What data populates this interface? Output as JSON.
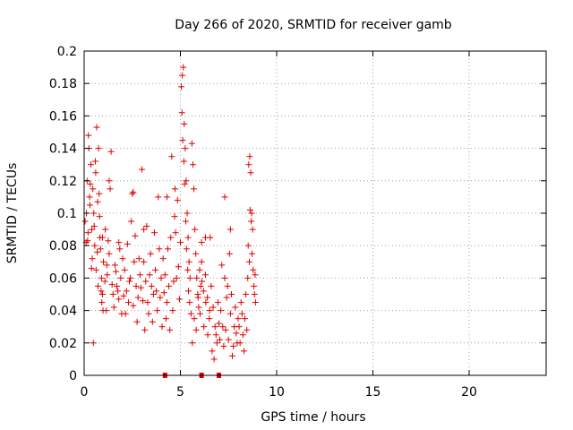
{
  "chart_data": {
    "type": "scatter",
    "title": "Day 266 of 2020, SRMTID for receiver gamb",
    "xlabel": "GPS time / hours",
    "ylabel": "SRMTID / TECUs",
    "xlim": [
      0,
      24
    ],
    "ylim": [
      0,
      0.2
    ],
    "xticks": [
      0,
      5,
      10,
      15,
      20
    ],
    "xtick_labels": [
      "0",
      "5",
      "10",
      "15",
      "20"
    ],
    "yticks": [
      0,
      0.02,
      0.04,
      0.06,
      0.08,
      0.1,
      0.12,
      0.14,
      0.16,
      0.18,
      0.2
    ],
    "ytick_labels": [
      "0",
      "0.02",
      "0.04",
      "0.06",
      "0.08",
      "0.1",
      "0.12",
      "0.14",
      "0.16",
      "0.18",
      "0.2"
    ],
    "grid": true,
    "marker": "plus",
    "color": "#e00000",
    "series": [
      {
        "points": [
          [
            0.05,
            0.095
          ],
          [
            0.1,
            0.082
          ],
          [
            0.15,
            0.12
          ],
          [
            0.2,
            0.088
          ],
          [
            0.25,
            0.14
          ],
          [
            0.3,
            0.105
          ],
          [
            0.35,
            0.13
          ],
          [
            0.4,
            0.09
          ],
          [
            0.45,
            0.115
          ],
          [
            0.5,
            0.1
          ],
          [
            0.55,
            0.08
          ],
          [
            0.6,
            0.125
          ],
          [
            0.65,
            0.153
          ],
          [
            0.7,
            0.107
          ],
          [
            0.75,
            0.14
          ],
          [
            0.8,
            0.098
          ],
          [
            0.85,
            0.078
          ],
          [
            0.9,
            0.06
          ],
          [
            0.95,
            0.05
          ],
          [
            1.0,
            0.07
          ],
          [
            0.12,
            0.1
          ],
          [
            0.22,
            0.148
          ],
          [
            0.32,
            0.118
          ],
          [
            0.42,
            0.072
          ],
          [
            0.52,
            0.092
          ],
          [
            0.62,
            0.065
          ],
          [
            0.72,
            0.055
          ],
          [
            0.82,
            0.085
          ],
          [
            0.92,
            0.045
          ],
          [
            0.48,
            0.02
          ],
          [
            0.18,
            0.083
          ],
          [
            0.28,
            0.11
          ],
          [
            0.38,
            0.066
          ],
          [
            0.58,
            0.132
          ],
          [
            0.68,
            0.076
          ],
          [
            0.78,
            0.112
          ],
          [
            0.88,
            0.052
          ],
          [
            0.98,
            0.04
          ],
          [
            1.08,
            0.058
          ],
          [
            1.18,
            0.068
          ],
          [
            1.1,
            0.09
          ],
          [
            1.2,
            0.062
          ],
          [
            1.3,
            0.075
          ],
          [
            1.4,
            0.138
          ],
          [
            1.5,
            0.05
          ],
          [
            1.6,
            0.068
          ],
          [
            1.7,
            0.055
          ],
          [
            1.8,
            0.047
          ],
          [
            1.9,
            0.06
          ],
          [
            2.0,
            0.072
          ],
          [
            1.15,
            0.04
          ],
          [
            1.25,
            0.083
          ],
          [
            1.35,
            0.115
          ],
          [
            1.45,
            0.056
          ],
          [
            1.55,
            0.042
          ],
          [
            1.65,
            0.064
          ],
          [
            1.75,
            0.052
          ],
          [
            1.85,
            0.078
          ],
          [
            1.95,
            0.038
          ],
          [
            2.05,
            0.049
          ],
          [
            2.1,
            0.065
          ],
          [
            2.2,
            0.052
          ],
          [
            2.3,
            0.045
          ],
          [
            2.4,
            0.06
          ],
          [
            2.5,
            0.112
          ],
          [
            2.6,
            0.07
          ],
          [
            2.7,
            0.055
          ],
          [
            2.8,
            0.048
          ],
          [
            2.9,
            0.062
          ],
          [
            3.0,
            0.127
          ],
          [
            2.15,
            0.038
          ],
          [
            2.25,
            0.081
          ],
          [
            2.35,
            0.058
          ],
          [
            2.45,
            0.095
          ],
          [
            2.55,
            0.043
          ],
          [
            2.65,
            0.086
          ],
          [
            2.75,
            0.033
          ],
          [
            2.85,
            0.072
          ],
          [
            2.95,
            0.054
          ],
          [
            3.05,
            0.046
          ],
          [
            3.1,
            0.07
          ],
          [
            3.2,
            0.058
          ],
          [
            3.3,
            0.045
          ],
          [
            3.4,
            0.062
          ],
          [
            3.5,
            0.055
          ],
          [
            3.6,
            0.05
          ],
          [
            3.7,
            0.065
          ],
          [
            3.8,
            0.04
          ],
          [
            3.9,
            0.078
          ],
          [
            4.0,
            0.06
          ],
          [
            3.15,
            0.028
          ],
          [
            3.25,
            0.092
          ],
          [
            3.35,
            0.038
          ],
          [
            3.45,
            0.075
          ],
          [
            3.55,
            0.033
          ],
          [
            3.65,
            0.088
          ],
          [
            3.75,
            0.052
          ],
          [
            3.85,
            0.11
          ],
          [
            3.95,
            0.048
          ],
          [
            4.05,
            0.03
          ],
          [
            4.1,
            0.072
          ],
          [
            4.2,
            0.062
          ],
          [
            4.3,
            0.045
          ],
          [
            4.4,
            0.055
          ],
          [
            4.5,
            0.085
          ],
          [
            4.6,
            0.04
          ],
          [
            4.7,
            0.098
          ],
          [
            4.8,
            0.06
          ],
          [
            4.9,
            0.067
          ],
          [
            5.0,
            0.082
          ],
          [
            4.15,
            0.051
          ],
          [
            4.25,
            0.035
          ],
          [
            4.35,
            0.078
          ],
          [
            4.45,
            0.028
          ],
          [
            4.55,
            0.135
          ],
          [
            4.65,
            0.058
          ],
          [
            4.75,
            0.088
          ],
          [
            4.85,
            0.108
          ],
          [
            4.95,
            0.047
          ],
          [
            4.72,
            0.115
          ],
          [
            5.05,
            0.178
          ],
          [
            5.1,
            0.185
          ],
          [
            5.15,
            0.19
          ],
          [
            5.2,
            0.155
          ],
          [
            5.25,
            0.14
          ],
          [
            5.3,
            0.12
          ],
          [
            5.35,
            0.1
          ],
          [
            5.4,
            0.085
          ],
          [
            5.45,
            0.07
          ],
          [
            5.5,
            0.06
          ],
          [
            5.08,
            0.162
          ],
          [
            5.12,
            0.145
          ],
          [
            5.18,
            0.132
          ],
          [
            5.22,
            0.118
          ],
          [
            5.28,
            0.095
          ],
          [
            5.32,
            0.078
          ],
          [
            5.38,
            0.065
          ],
          [
            5.42,
            0.052
          ],
          [
            5.48,
            0.045
          ],
          [
            5.55,
            0.038
          ],
          [
            5.6,
            0.143
          ],
          [
            5.65,
            0.13
          ],
          [
            5.7,
            0.115
          ],
          [
            5.75,
            0.09
          ],
          [
            5.8,
            0.075
          ],
          [
            5.85,
            0.06
          ],
          [
            5.9,
            0.05
          ],
          [
            5.95,
            0.042
          ],
          [
            6.0,
            0.065
          ],
          [
            6.05,
            0.055
          ],
          [
            5.62,
            0.02
          ],
          [
            5.72,
            0.035
          ],
          [
            5.82,
            0.028
          ],
          [
            5.92,
            0.048
          ],
          [
            6.02,
            0.038
          ],
          [
            6.12,
            0.058
          ],
          [
            6.22,
            0.03
          ],
          [
            6.32,
            0.045
          ],
          [
            6.42,
            0.025
          ],
          [
            6.52,
            0.04
          ],
          [
            6.1,
            0.07
          ],
          [
            6.2,
            0.052
          ],
          [
            6.3,
            0.062
          ],
          [
            6.4,
            0.048
          ],
          [
            6.5,
            0.035
          ],
          [
            6.6,
            0.055
          ],
          [
            6.7,
            0.042
          ],
          [
            6.8,
            0.03
          ],
          [
            6.9,
            0.02
          ],
          [
            7.0,
            0.032
          ],
          [
            6.55,
            0.085
          ],
          [
            6.65,
            0.015
          ],
          [
            6.75,
            0.01
          ],
          [
            6.85,
            0.025
          ],
          [
            6.95,
            0.045
          ],
          [
            7.05,
            0.022
          ],
          [
            7.15,
            0.068
          ],
          [
            7.25,
            0.018
          ],
          [
            7.35,
            0.028
          ],
          [
            7.45,
            0.055
          ],
          [
            7.1,
            0.04
          ],
          [
            7.2,
            0.03
          ],
          [
            7.3,
            0.06
          ],
          [
            7.4,
            0.048
          ],
          [
            7.5,
            0.022
          ],
          [
            7.6,
            0.038
          ],
          [
            7.7,
            0.012
          ],
          [
            7.8,
            0.03
          ],
          [
            7.9,
            0.026
          ],
          [
            8.0,
            0.035
          ],
          [
            7.55,
            0.075
          ],
          [
            7.65,
            0.05
          ],
          [
            7.75,
            0.018
          ],
          [
            7.85,
            0.042
          ],
          [
            7.95,
            0.02
          ],
          [
            8.05,
            0.03
          ],
          [
            8.15,
            0.045
          ],
          [
            8.25,
            0.025
          ],
          [
            8.35,
            0.035
          ],
          [
            8.45,
            0.028
          ],
          [
            8.1,
            0.02
          ],
          [
            8.2,
            0.038
          ],
          [
            8.3,
            0.015
          ],
          [
            8.4,
            0.05
          ],
          [
            8.5,
            0.06
          ],
          [
            8.55,
            0.13
          ],
          [
            8.6,
            0.135
          ],
          [
            8.65,
            0.125
          ],
          [
            8.7,
            0.1
          ],
          [
            8.75,
            0.09
          ],
          [
            8.52,
            0.08
          ],
          [
            8.58,
            0.07
          ],
          [
            8.62,
            0.102
          ],
          [
            8.68,
            0.095
          ],
          [
            8.72,
            0.075
          ],
          [
            8.78,
            0.065
          ],
          [
            8.82,
            0.055
          ],
          [
            8.85,
            0.05
          ],
          [
            8.88,
            0.062
          ],
          [
            8.9,
            0.045
          ],
          [
            7.3,
            0.11
          ],
          [
            7.6,
            0.09
          ],
          [
            6.3,
            0.085
          ],
          [
            6.1,
            0.082
          ],
          [
            3.1,
            0.09
          ],
          [
            2.55,
            0.113
          ],
          [
            1.8,
            0.082
          ],
          [
            0.95,
            0.085
          ],
          [
            1.3,
            0.12
          ],
          [
            4.3,
            0.11
          ]
        ]
      }
    ],
    "bad_data_marks_x": [
      4.2,
      6.1,
      7.0
    ]
  }
}
